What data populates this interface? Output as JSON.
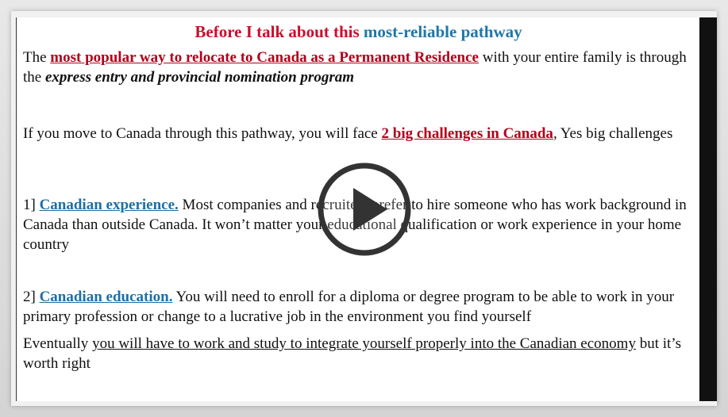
{
  "slide": {
    "title_part1": "Before I talk about this",
    "title_part2": "most-reliable pathway",
    "p1": {
      "pre": "The",
      "highlight": "most popular way to relocate to Canada as a Permanent Residence",
      "mid": "with your entire family is through the",
      "emph": "express entry and provincial nomination program"
    },
    "p2": {
      "pre": "If you move to Canada through this pathway, you will face",
      "highlight": "2 big challenges in Canada",
      "post": ", Yes big challenges"
    },
    "p3": {
      "num": "1]",
      "highlight": "Canadian experience.",
      "post": "Most companies and recruiters prefer to hire someone who has work background in Canada than outside Canada. It won’t matter your educational qualification or work experience in your home country"
    },
    "p4": {
      "num": "2]",
      "highlight": "Canadian education.",
      "post": "You will need to enroll for a diploma or degree program to be able to work in your primary profession or change to a lucrative job in the environment you find yourself"
    },
    "p5": {
      "pre": "Eventually",
      "underlined": "you will have to work and study to integrate yourself properly into the Canadian economy",
      "post": "but it’s worth right"
    }
  },
  "player": {
    "play_icon": "play-icon"
  },
  "colors": {
    "title_red": "#c8102e",
    "title_blue": "#1f77a8",
    "highlight_red": "#b3001b",
    "highlight_blue": "#1f6fa3"
  }
}
